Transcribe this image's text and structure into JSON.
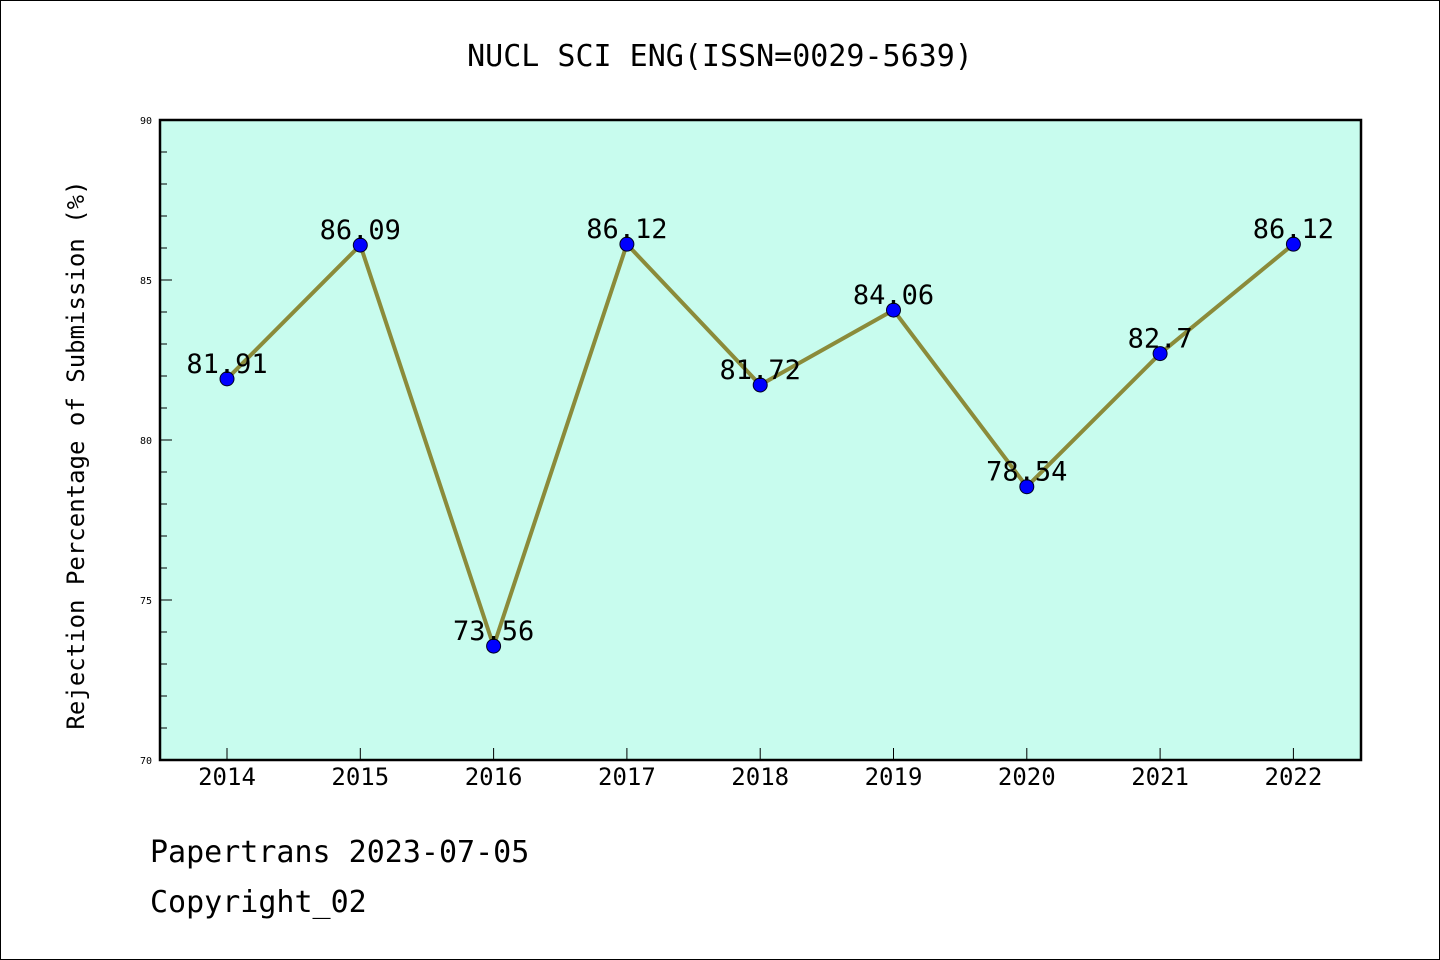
{
  "footer": {
    "line1": "Papertrans 2023-07-05",
    "line2": "Copyright_02"
  },
  "colors": {
    "plot_background": "#c8fcee",
    "line": "#8b8b3a",
    "marker": "#0000ff",
    "frame": "#000000"
  },
  "chart_data": {
    "type": "line",
    "title": "NUCL SCI ENG(ISSN=0029-5639)",
    "xlabel": "",
    "ylabel": "Rejection Percentage of Submission (%)",
    "categories": [
      "2014",
      "2015",
      "2016",
      "2017",
      "2018",
      "2019",
      "2020",
      "2021",
      "2022"
    ],
    "series": [
      {
        "values": [
          81.91,
          86.09,
          73.56,
          86.12,
          81.72,
          84.06,
          78.54,
          82.7,
          86.12
        ],
        "labels": [
          "81.91",
          "86.09",
          "73.56",
          "86.12",
          "81.72",
          "84.06",
          "78.54",
          "82.7",
          "86.12"
        ]
      }
    ],
    "ylim": [
      70,
      90
    ],
    "yticks": [
      "70",
      "75",
      "80",
      "85",
      "90"
    ],
    "grid": false,
    "legend": "none"
  }
}
